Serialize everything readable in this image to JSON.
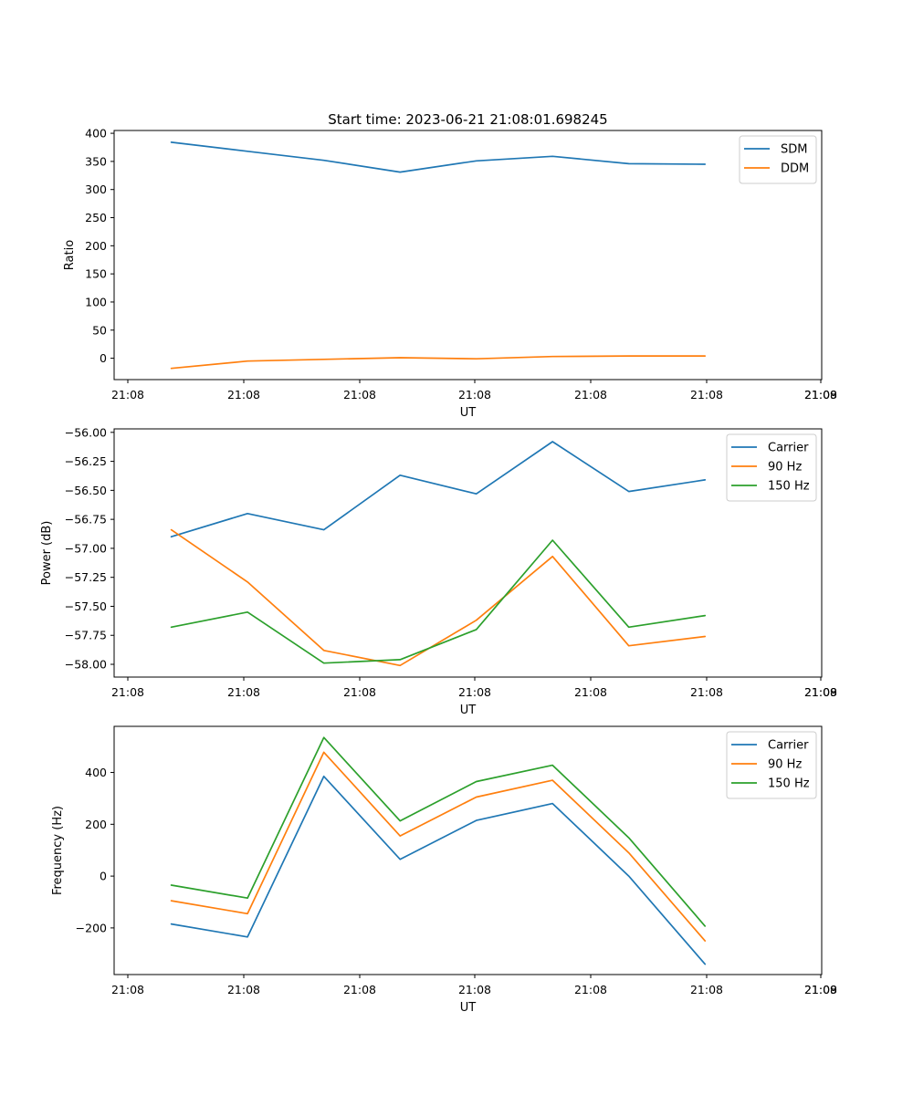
{
  "figure_title": "Start time: 2023-06-21 21:08:01.698245",
  "colors": {
    "blue": "#1f77b4",
    "orange": "#ff7f0e",
    "green": "#2ca02c"
  },
  "chart_data": [
    {
      "type": "line",
      "xlabel": "UT",
      "ylabel": "Ratio",
      "xticks": [
        "21:08",
        "21:08",
        "21:08",
        "21:08",
        "21:08",
        "21:08",
        "21:08"
      ],
      "xticks_right": "21:09",
      "x": [
        0,
        1,
        2,
        3,
        4,
        5,
        6,
        7
      ],
      "xlim": [
        -0.75,
        8.53
      ],
      "ylim": [
        -38,
        405
      ],
      "yticks": [
        0,
        50,
        100,
        150,
        200,
        250,
        300,
        350,
        400
      ],
      "legend": "top-right",
      "series": [
        {
          "name": "SDM",
          "color": "#1f77b4",
          "values": [
            384,
            368,
            352,
            331,
            351,
            359,
            346,
            345
          ]
        },
        {
          "name": "DDM",
          "color": "#ff7f0e",
          "values": [
            -18,
            -5,
            -2,
            1,
            -1,
            3,
            4,
            4
          ]
        }
      ]
    },
    {
      "type": "line",
      "xlabel": "UT",
      "ylabel": "Power (dB)",
      "xticks": [
        "21:08",
        "21:08",
        "21:08",
        "21:08",
        "21:08",
        "21:08",
        "21:08"
      ],
      "xticks_right": "21:09",
      "x": [
        0,
        1,
        2,
        3,
        4,
        5,
        6,
        7
      ],
      "xlim": [
        -0.75,
        8.53
      ],
      "ylim": [
        -58.11,
        -55.97
      ],
      "yticks": [
        -58.0,
        -57.75,
        -57.5,
        -57.25,
        -57.0,
        -56.75,
        -56.5,
        -56.25,
        -56.0
      ],
      "legend": "top-right",
      "series": [
        {
          "name": "Carrier",
          "color": "#1f77b4",
          "values": [
            -56.9,
            -56.7,
            -56.84,
            -56.37,
            -56.53,
            -56.08,
            -56.51,
            -56.41
          ]
        },
        {
          "name": "90 Hz",
          "color": "#ff7f0e",
          "values": [
            -56.84,
            -57.29,
            -57.88,
            -58.01,
            -57.62,
            -57.07,
            -57.84,
            -57.76
          ]
        },
        {
          "name": "150 Hz",
          "color": "#2ca02c",
          "values": [
            -57.68,
            -57.55,
            -57.99,
            -57.96,
            -57.7,
            -56.93,
            -57.68,
            -57.58
          ]
        }
      ]
    },
    {
      "type": "line",
      "xlabel": "UT",
      "ylabel": "Frequency (Hz)",
      "xticks": [
        "21:08",
        "21:08",
        "21:08",
        "21:08",
        "21:08",
        "21:08",
        "21:08"
      ],
      "xticks_right": "21:09",
      "x": [
        0,
        1,
        2,
        3,
        4,
        5,
        6,
        7
      ],
      "xlim": [
        -0.75,
        8.53
      ],
      "ylim": [
        -380,
        578
      ],
      "yticks": [
        -200,
        0,
        200,
        400
      ],
      "legend": "top-right",
      "series": [
        {
          "name": "Carrier",
          "color": "#1f77b4",
          "values": [
            -185,
            -235,
            385,
            65,
            215,
            280,
            0,
            -340
          ]
        },
        {
          "name": "90 Hz",
          "color": "#ff7f0e",
          "values": [
            -95,
            -145,
            478,
            155,
            305,
            370,
            90,
            -250
          ]
        },
        {
          "name": "150 Hz",
          "color": "#2ca02c",
          "values": [
            -35,
            -85,
            535,
            213,
            365,
            428,
            148,
            -193
          ]
        }
      ]
    }
  ]
}
